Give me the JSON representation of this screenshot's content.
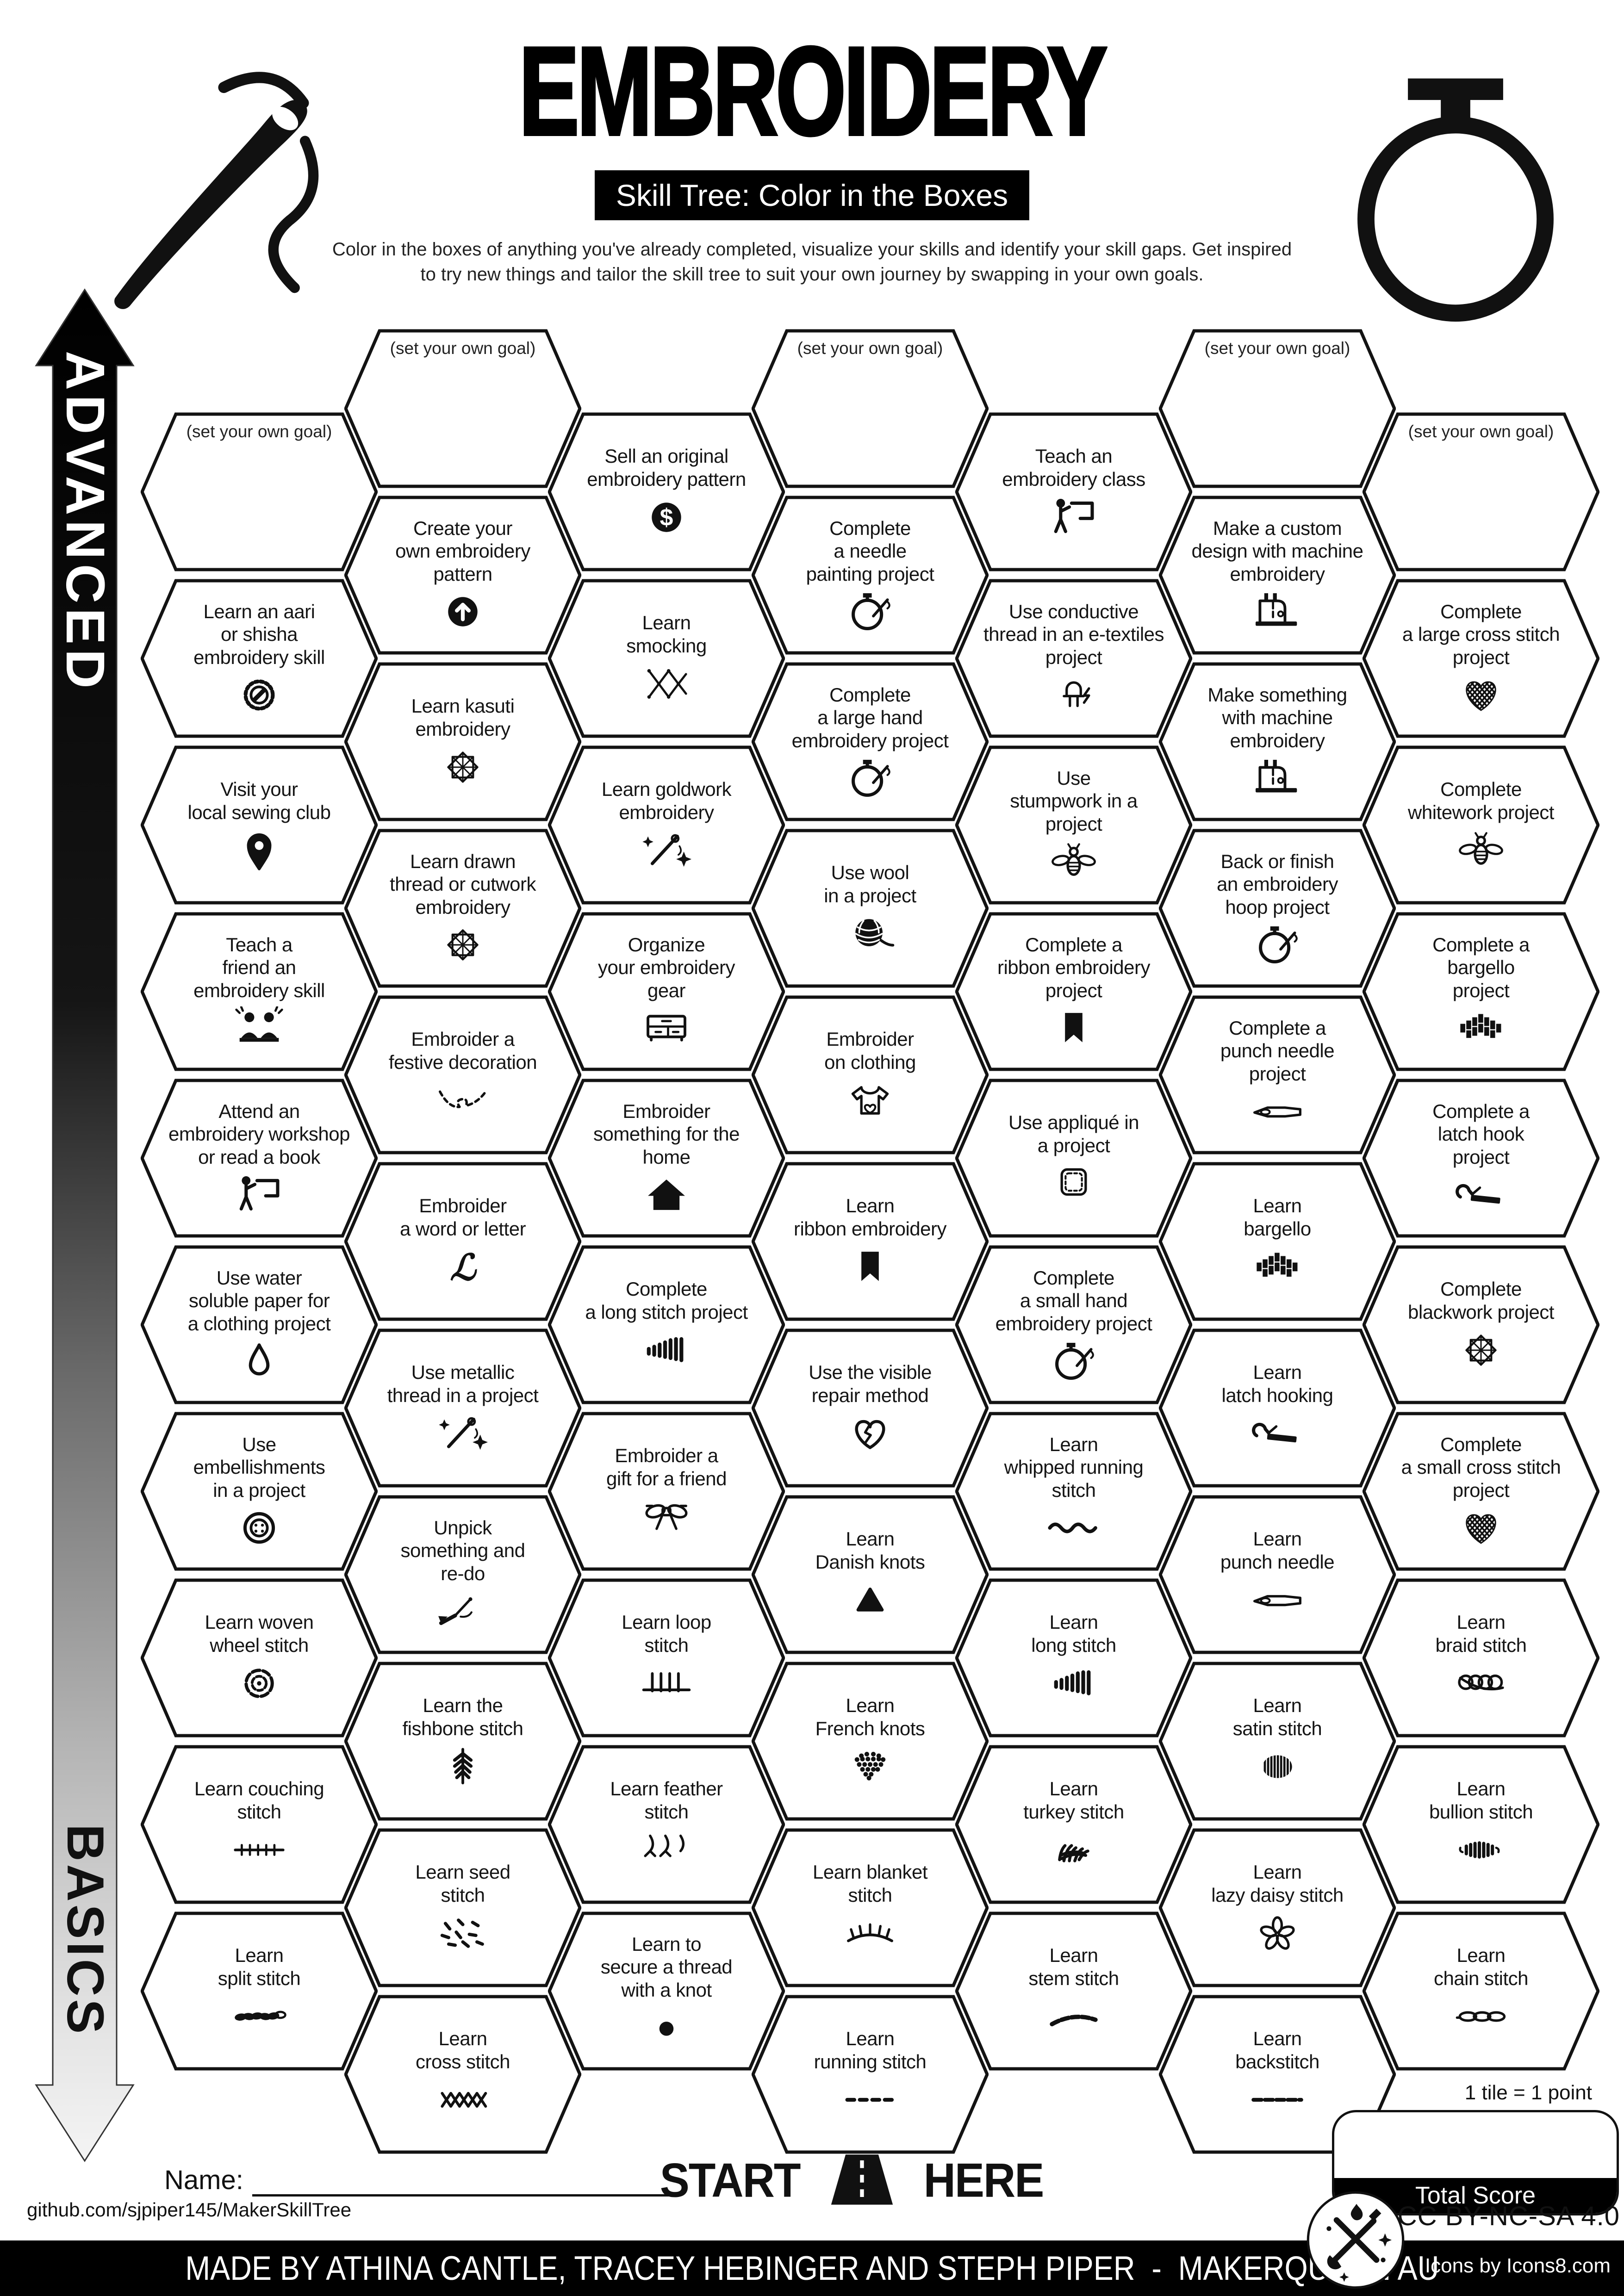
{
  "header": {
    "title": "EMBROIDERY",
    "subtitle": "Skill Tree: Color in the Boxes",
    "description": "Color in the boxes of anything you've already completed, visualize your skills and identify your skill gaps.  Get inspired\nto try new things and tailor the skill tree to suit your own journey by swapping in your own goals."
  },
  "sidebar": {
    "top_label": "ADVANCED",
    "bottom_label": "BASICS"
  },
  "goal_label": "(set your own goal)",
  "start_here": {
    "start": "START",
    "here": "HERE"
  },
  "score": {
    "note": "1 tile = 1 point",
    "total_label": "Total Score"
  },
  "footer": {
    "name_label": "Name:",
    "github": "github.com/sjpiper145/MakerSkillTree",
    "credit": "MADE BY ATHINA CANTLE, TRACEY HEBINGER AND STEPH PIPER  -  MAKERQUEEN AU",
    "license": "CC BY-NC-SA 4.0",
    "icons_credit": "Icons by Icons8.com"
  },
  "colors": {
    "ink": "#111111",
    "paper": "#ffffff"
  },
  "columns": [
    {
      "tiles": [
        {
          "goal": true
        },
        {
          "label": "Learn an aari\nor shisha\nembroidery skill",
          "icon": "shisha-mirror-icon"
        },
        {
          "label": "Visit your\nlocal sewing club",
          "icon": "location-pin-icon"
        },
        {
          "label": "Teach a\nfriend an\nembroidery skill",
          "icon": "friends-icon"
        },
        {
          "label": "Attend an\nembroidery workshop\nor read a book",
          "icon": "teacher-board-icon"
        },
        {
          "label": "Use water\nsoluble paper for\na clothing project",
          "icon": "water-drop-icon"
        },
        {
          "label": "Use\nembellishments\nin a project",
          "icon": "button-icon"
        },
        {
          "label": "Learn woven\nwheel stitch",
          "icon": "woven-wheel-icon"
        },
        {
          "label": "Learn couching\nstitch",
          "icon": "couching-stitch-icon"
        },
        {
          "label": "Learn\nsplit stitch",
          "icon": "split-stitch-icon"
        }
      ]
    },
    {
      "tiles": [
        {
          "goal": true
        },
        {
          "label": "Create your\nown embroidery\npattern",
          "icon": "arrow-up-circle-icon"
        },
        {
          "label": "Learn kasuti\nembroidery",
          "icon": "eight-point-star-icon"
        },
        {
          "label": "Learn drawn\nthread or cutwork\nembroidery",
          "icon": "eight-point-star-icon"
        },
        {
          "label": "Embroider a\nfestive decoration",
          "icon": "festive-swag-icon"
        },
        {
          "label": "Embroider\na word or letter",
          "icon": "script-letter-icon"
        },
        {
          "label": "Use metallic\nthread in a project",
          "icon": "sparkle-needle-icon"
        },
        {
          "label": "Unpick\nsomething and\nre-do",
          "icon": "seam-ripper-icon"
        },
        {
          "label": "Learn the\nfishbone stitch",
          "icon": "fishbone-stitch-icon"
        },
        {
          "label": "Learn seed\nstitch",
          "icon": "seed-stitch-icon"
        },
        {
          "label": "Learn\ncross stitch",
          "icon": "cross-stitch-row-icon"
        }
      ]
    },
    {
      "tiles": [
        {
          "label": "Sell an original\nembroidery pattern",
          "icon": "dollar-circle-icon"
        },
        {
          "label": "Learn\nsmocking",
          "icon": "smocking-icon"
        },
        {
          "label": "Learn goldwork\nembroidery",
          "icon": "sparkle-needle-icon"
        },
        {
          "label": "Organize\nyour embroidery\ngear",
          "icon": "cabinet-icon"
        },
        {
          "label": "Embroider\nsomething for the\nhome",
          "icon": "house-icon"
        },
        {
          "label": "Complete\na long stitch project",
          "icon": "long-stitch-icon"
        },
        {
          "label": "Embroider a\ngift for a friend",
          "icon": "gift-bow-icon"
        },
        {
          "label": "Learn loop\nstitch",
          "icon": "loop-stitch-icon"
        },
        {
          "label": "Learn feather\nstitch",
          "icon": "feather-stitch-icon"
        },
        {
          "label": "Learn to\nsecure a thread\nwith a knot",
          "icon": "knot-dot-icon"
        }
      ]
    },
    {
      "tiles": [
        {
          "goal": true
        },
        {
          "label": "Complete\na needle\npainting project",
          "icon": "hoop-needle-icon"
        },
        {
          "label": "Complete\na large hand\nembroidery project",
          "icon": "hoop-needle-icon"
        },
        {
          "label": "Use wool\nin a project",
          "icon": "wool-ball-icon"
        },
        {
          "label": "Embroider\non clothing",
          "icon": "tshirt-heart-icon"
        },
        {
          "label": "Learn\nribbon embroidery",
          "icon": "ribbon-bookmark-icon"
        },
        {
          "label": "Use the visible\nrepair method",
          "icon": "mended-heart-icon"
        },
        {
          "label": "Learn\nDanish knots",
          "icon": "danish-knot-icon"
        },
        {
          "label": "Learn\nFrench knots",
          "icon": "french-knots-icon"
        },
        {
          "label": "Learn blanket\nstitch",
          "icon": "blanket-stitch-icon"
        },
        {
          "label": "Learn\nrunning stitch",
          "icon": "running-stitch-icon"
        }
      ]
    },
    {
      "tiles": [
        {
          "label": "Teach an\nembroidery class",
          "icon": "teacher-board-icon"
        },
        {
          "label": "Use conductive\nthread in an e-textiles\nproject",
          "icon": "led-bolt-icon"
        },
        {
          "label": "Use\nstumpwork in a\nproject",
          "icon": "bee-icon"
        },
        {
          "label": "Complete a\nribbon embroidery\nproject",
          "icon": "ribbon-bookmark-icon"
        },
        {
          "label": "Use appliqué in\na project",
          "icon": "applique-patch-icon"
        },
        {
          "label": "Complete\na small hand\nembroidery project",
          "icon": "hoop-needle-icon"
        },
        {
          "label": "Learn\nwhipped running\nstitch",
          "icon": "whipped-running-icon"
        },
        {
          "label": "Learn\nlong stitch",
          "icon": "long-stitch-icon"
        },
        {
          "label": "Learn\nturkey stitch",
          "icon": "turkey-stitch-icon"
        },
        {
          "label": "Learn\nstem stitch",
          "icon": "stem-stitch-icon"
        }
      ]
    },
    {
      "tiles": [
        {
          "goal": true
        },
        {
          "label": "Make a custom\ndesign with machine\nembroidery",
          "icon": "sewing-machine-icon"
        },
        {
          "label": "Make something\nwith machine\nembroidery",
          "icon": "sewing-machine-icon"
        },
        {
          "label": "Back or finish\nan embroidery\nhoop project",
          "icon": "hoop-needle-icon"
        },
        {
          "label": "Complete a\npunch needle\nproject",
          "icon": "punch-needle-icon"
        },
        {
          "label": "Learn\nbargello",
          "icon": "bargello-icon"
        },
        {
          "label": "Learn\nlatch hooking",
          "icon": "latch-hook-icon"
        },
        {
          "label": "Learn\npunch needle",
          "icon": "punch-needle-icon"
        },
        {
          "label": "Learn\nsatin stitch",
          "icon": "satin-stitch-icon"
        },
        {
          "label": "Learn\nlazy daisy stitch",
          "icon": "lazy-daisy-icon"
        },
        {
          "label": "Learn\nbackstitch",
          "icon": "backstitch-icon"
        }
      ]
    },
    {
      "tiles": [
        {
          "goal": true
        },
        {
          "label": "Complete\na large cross stitch\nproject",
          "icon": "cross-stitch-heart-icon"
        },
        {
          "label": "Complete\nwhitework project",
          "icon": "bee-icon"
        },
        {
          "label": "Complete a\nbargello\nproject",
          "icon": "bargello-icon"
        },
        {
          "label": "Complete a\nlatch hook\nproject",
          "icon": "latch-hook-icon"
        },
        {
          "label": "Complete\nblackwork project",
          "icon": "eight-point-star-icon"
        },
        {
          "label": "Complete\na small cross stitch\nproject",
          "icon": "cross-stitch-heart-small-icon"
        },
        {
          "label": "Learn\nbraid stitch",
          "icon": "braid-stitch-icon"
        },
        {
          "label": "Learn\nbullion stitch",
          "icon": "bullion-stitch-icon"
        },
        {
          "label": "Learn\nchain stitch",
          "icon": "chain-stitch-icon"
        }
      ]
    }
  ]
}
